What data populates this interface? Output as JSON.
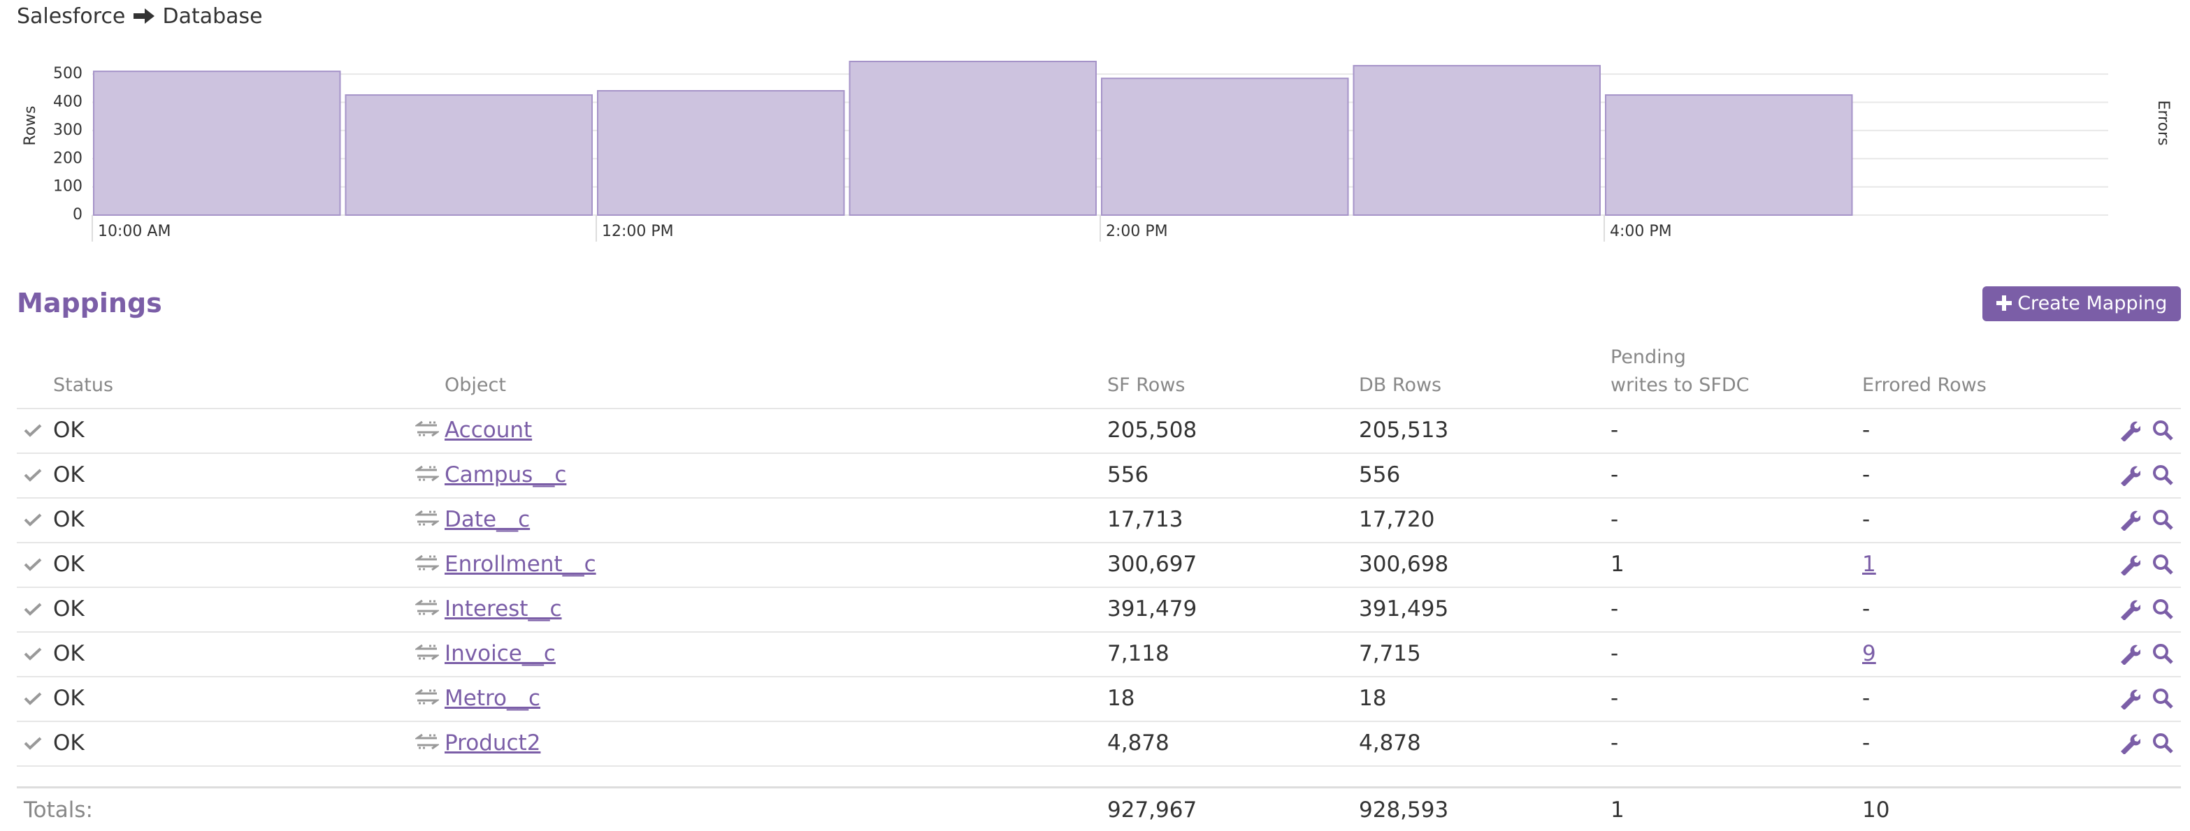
{
  "header": {
    "source": "Salesforce",
    "target": "Database"
  },
  "chart_data": {
    "type": "bar",
    "categories": [
      "10:00 AM",
      null,
      "12:00 PM",
      null,
      "2:00 PM",
      null,
      "4:00 PM"
    ],
    "values": [
      510,
      426,
      441,
      545,
      485,
      530,
      426
    ],
    "color": "#cdc3df",
    "ylim": [
      0,
      550
    ],
    "yticks": [
      0,
      100,
      200,
      300,
      400,
      500
    ],
    "grid": true,
    "ylabel": "Rows",
    "y2label": "Errors"
  },
  "mappings": {
    "title": "Mappings",
    "button": "Create Mapping",
    "columns": [
      "Status",
      "Object",
      "SF Rows",
      "DB Rows",
      "Pending\nwrites to SFDC",
      "Errored Rows"
    ],
    "rows": [
      [
        "OK",
        "Account",
        "205,508",
        "205,513",
        "-",
        "-"
      ],
      [
        "OK",
        "Campus__c",
        "556",
        "556",
        "-",
        "-"
      ],
      [
        "OK",
        "Date__c",
        "17,713",
        "17,720",
        "-",
        "-"
      ],
      [
        "OK",
        "Enrollment__c",
        "300,697",
        "300,698",
        "1",
        "1"
      ],
      [
        "OK",
        "Interest__c",
        "391,479",
        "391,495",
        "-",
        "-"
      ],
      [
        "OK",
        "Invoice__c",
        "7,118",
        "7,715",
        "-",
        "9"
      ],
      [
        "OK",
        "Metro__c",
        "18",
        "18",
        "-",
        "-"
      ],
      [
        "OK",
        "Product2",
        "4,878",
        "4,878",
        "-",
        "-"
      ]
    ],
    "totals": {
      "label": "Totals:",
      "values": [
        "927,967",
        "928,593",
        "1",
        "10"
      ]
    }
  }
}
